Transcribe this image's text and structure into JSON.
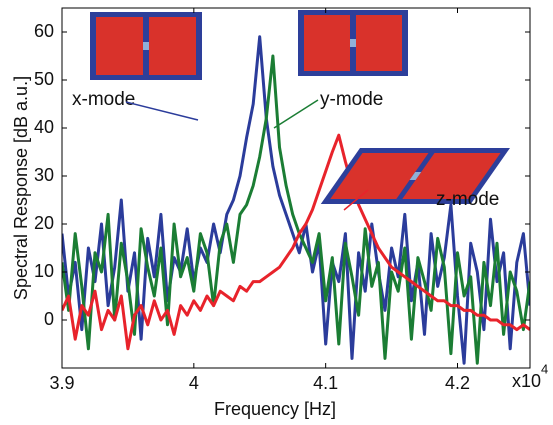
{
  "chart_data": {
    "type": "line",
    "xlabel": "Frequency [Hz]",
    "ylabel": "Spectral Response [dB a.u.]",
    "x_multiplier": "x10",
    "x_multiplier_exponent": "4",
    "xlim": [
      3.9,
      4.255
    ],
    "xticks": [
      3.9,
      4,
      4.1,
      4.2
    ],
    "ylim": [
      -10,
      65
    ],
    "yticks": [
      0,
      10,
      20,
      30,
      40,
      50,
      60
    ],
    "grid": false,
    "annotations": [
      "x-mode",
      "y-mode",
      "z-mode"
    ],
    "x": [
      3.9,
      3.905,
      3.91,
      3.915,
      3.92,
      3.925,
      3.93,
      3.935,
      3.94,
      3.945,
      3.95,
      3.955,
      3.96,
      3.965,
      3.97,
      3.975,
      3.98,
      3.985,
      3.99,
      3.995,
      4.0,
      4.005,
      4.01,
      4.015,
      4.02,
      4.025,
      4.03,
      4.035,
      4.04,
      4.045,
      4.05,
      4.055,
      4.06,
      4.065,
      4.07,
      4.075,
      4.08,
      4.085,
      4.09,
      4.095,
      4.1,
      4.105,
      4.11,
      4.115,
      4.12,
      4.125,
      4.13,
      4.135,
      4.14,
      4.145,
      4.15,
      4.155,
      4.16,
      4.165,
      4.17,
      4.175,
      4.18,
      4.185,
      4.19,
      4.195,
      4.2,
      4.205,
      4.21,
      4.215,
      4.22,
      4.225,
      4.23,
      4.235,
      4.24,
      4.245,
      4.25,
      4.255
    ],
    "series": [
      {
        "color": "#2b3c9b",
        "values": [
          18,
          5,
          12,
          -2,
          15,
          8,
          20,
          3,
          11,
          25,
          6,
          14,
          -4,
          17,
          9,
          22,
          4,
          13,
          10,
          19,
          8,
          15,
          12,
          20,
          14,
          22,
          25,
          30,
          38,
          45,
          59,
          42,
          32,
          26,
          22,
          18,
          14,
          20,
          10,
          16,
          -5,
          12,
          8,
          18,
          -8,
          14,
          6,
          20,
          10,
          2,
          15,
          9,
          22,
          4,
          12,
          -3,
          18,
          7,
          13,
          24,
          5,
          -9,
          16,
          10,
          -2,
          21,
          8,
          14,
          -6,
          12,
          18,
          3
        ]
      },
      {
        "color": "#1b7d34",
        "values": [
          12,
          2,
          18,
          7,
          -6,
          14,
          10,
          22,
          0,
          16,
          8,
          -3,
          19,
          11,
          5,
          15,
          -1,
          20,
          9,
          13,
          6,
          18,
          14,
          3,
          16,
          20,
          12,
          22,
          24,
          28,
          34,
          42,
          55,
          36,
          28,
          22,
          18,
          15,
          12,
          18,
          4,
          13,
          -5,
          16,
          9,
          1,
          19,
          7,
          12,
          -8,
          10,
          6,
          15,
          -4,
          13,
          8,
          2,
          17,
          11,
          -7,
          14,
          5,
          9,
          -9,
          12,
          3,
          16,
          -3,
          10,
          6,
          -2,
          8
        ]
      },
      {
        "color": "#e8232b",
        "values": [
          2,
          5,
          -4,
          3,
          1,
          6,
          -2,
          2,
          0,
          5,
          -6,
          1,
          3,
          -1,
          4,
          0,
          2,
          -3,
          3,
          1,
          4,
          2,
          5,
          3,
          6,
          5,
          4,
          7,
          6,
          8,
          8,
          9,
          10,
          11,
          13,
          15,
          18,
          20,
          23,
          27,
          31,
          35,
          38.5,
          33,
          28,
          24,
          21,
          18,
          15,
          13,
          11,
          10,
          9,
          8,
          7,
          6,
          5,
          4,
          4,
          3,
          3,
          2,
          2,
          1,
          1,
          0,
          0,
          -1,
          -1,
          -2,
          -1,
          -2
        ]
      }
    ]
  }
}
